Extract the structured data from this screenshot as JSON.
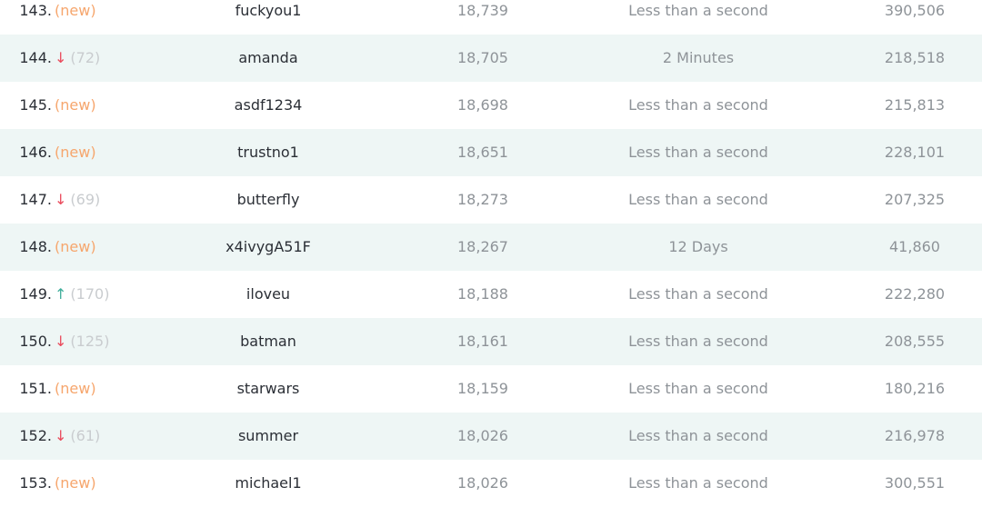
{
  "colors": {
    "new": "#f6a66d",
    "down": "#ea4b5c",
    "up": "#3fae9b",
    "stripe": "#eef6f5"
  },
  "rows": [
    {
      "rank": "143.",
      "change": "new",
      "prev": "",
      "password": "fuckyou1",
      "count": "18,739",
      "time": "Less than a second",
      "users": "390,506"
    },
    {
      "rank": "144.",
      "change": "down",
      "prev": "(72)",
      "password": "amanda",
      "count": "18,705",
      "time": "2 Minutes",
      "users": "218,518"
    },
    {
      "rank": "145.",
      "change": "new",
      "prev": "",
      "password": "asdf1234",
      "count": "18,698",
      "time": "Less than a second",
      "users": "215,813"
    },
    {
      "rank": "146.",
      "change": "new",
      "prev": "",
      "password": "trustno1",
      "count": "18,651",
      "time": "Less than a second",
      "users": "228,101"
    },
    {
      "rank": "147.",
      "change": "down",
      "prev": "(69)",
      "password": "butterfly",
      "count": "18,273",
      "time": "Less than a second",
      "users": "207,325"
    },
    {
      "rank": "148.",
      "change": "new",
      "prev": "",
      "password": "x4ivygA51F",
      "count": "18,267",
      "time": "12 Days",
      "users": "41,860"
    },
    {
      "rank": "149.",
      "change": "up",
      "prev": "(170)",
      "password": "iloveu",
      "count": "18,188",
      "time": "Less than a second",
      "users": "222,280"
    },
    {
      "rank": "150.",
      "change": "down",
      "prev": "(125)",
      "password": "batman",
      "count": "18,161",
      "time": "Less than a second",
      "users": "208,555"
    },
    {
      "rank": "151.",
      "change": "new",
      "prev": "",
      "password": "starwars",
      "count": "18,159",
      "time": "Less than a second",
      "users": "180,216"
    },
    {
      "rank": "152.",
      "change": "down",
      "prev": "(61)",
      "password": "summer",
      "count": "18,026",
      "time": "Less than a second",
      "users": "216,978"
    },
    {
      "rank": "153.",
      "change": "new",
      "prev": "",
      "password": "michael1",
      "count": "18,026",
      "time": "Less than a second",
      "users": "300,551"
    }
  ],
  "labels": {
    "new": "(new)"
  }
}
